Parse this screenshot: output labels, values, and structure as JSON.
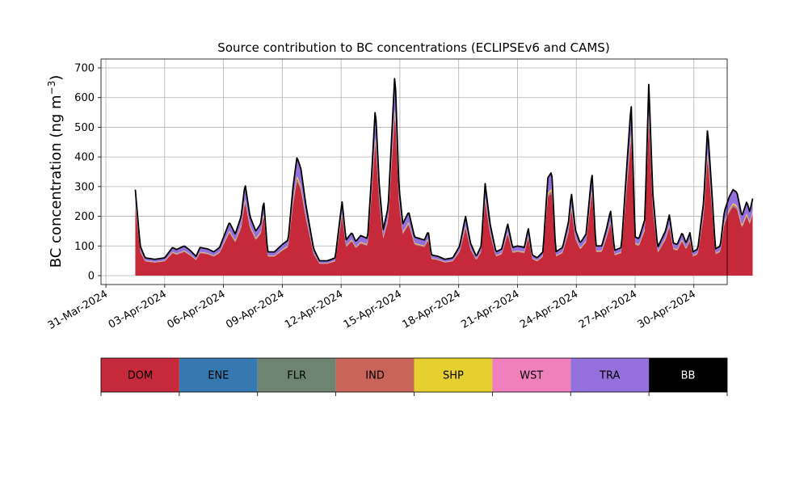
{
  "chart_data": {
    "type": "area",
    "stacked": true,
    "title": "Source contribution to BC concentrations (ECLIPSEv6 and CAMS)",
    "ylabel_main": "BC concentration (ng m",
    "ylabel_sup": "−3",
    "ylabel_close": ")",
    "ylim": [
      -30,
      730
    ],
    "yticks": [
      0,
      100,
      200,
      300,
      400,
      500,
      600,
      700
    ],
    "xlim_days": [
      -0.25,
      31.7
    ],
    "xtick_labels": [
      "31-Mar-2024",
      "03-Apr-2024",
      "06-Apr-2024",
      "09-Apr-2024",
      "12-Apr-2024",
      "15-Apr-2024",
      "18-Apr-2024",
      "21-Apr-2024",
      "24-Apr-2024",
      "27-Apr-2024",
      "30-Apr-2024"
    ],
    "xtick_days": [
      0,
      3,
      6,
      9,
      12,
      15,
      18,
      21,
      24,
      27,
      30
    ],
    "grid": true,
    "legend": "below",
    "series_order": [
      "DOM",
      "ENE",
      "FLR",
      "IND",
      "SHP",
      "WST",
      "TRA",
      "BB"
    ],
    "colors": {
      "DOM": "#c62a3a",
      "ENE": "#3679b1",
      "FLR": "#6f8470",
      "IND": "#c8645a",
      "SHP": "#e6d030",
      "WST": "#f07fbe",
      "TRA": "#9370db",
      "BB": "#000000"
    },
    "dom_fraction": 0.8,
    "minor_fractions": {
      "ENE": 0.005,
      "FLR": 0.005,
      "IND": 0.015,
      "SHP": 0.015,
      "WST": 0.005,
      "BB": 0.005
    },
    "total_keypoints": [
      [
        1.5,
        290
      ],
      [
        1.75,
        100
      ],
      [
        2.0,
        60
      ],
      [
        2.5,
        55
      ],
      [
        3.0,
        60
      ],
      [
        3.4,
        95
      ],
      [
        3.6,
        88
      ],
      [
        4.0,
        100
      ],
      [
        4.3,
        85
      ],
      [
        4.6,
        65
      ],
      [
        4.8,
        95
      ],
      [
        5.2,
        90
      ],
      [
        5.5,
        80
      ],
      [
        5.8,
        95
      ],
      [
        6.3,
        180
      ],
      [
        6.6,
        140
      ],
      [
        6.9,
        200
      ],
      [
        7.1,
        310
      ],
      [
        7.35,
        200
      ],
      [
        7.65,
        150
      ],
      [
        7.9,
        175
      ],
      [
        8.05,
        255
      ],
      [
        8.25,
        80
      ],
      [
        8.6,
        80
      ],
      [
        9.0,
        105
      ],
      [
        9.3,
        120
      ],
      [
        9.55,
        300
      ],
      [
        9.75,
        400
      ],
      [
        9.95,
        360
      ],
      [
        10.2,
        240
      ],
      [
        10.6,
        90
      ],
      [
        10.9,
        50
      ],
      [
        11.3,
        50
      ],
      [
        11.7,
        60
      ],
      [
        12.05,
        250
      ],
      [
        12.25,
        120
      ],
      [
        12.55,
        145
      ],
      [
        12.75,
        115
      ],
      [
        13.0,
        135
      ],
      [
        13.35,
        125
      ],
      [
        13.55,
        330
      ],
      [
        13.75,
        570
      ],
      [
        13.95,
        300
      ],
      [
        14.15,
        155
      ],
      [
        14.4,
        230
      ],
      [
        14.75,
        690
      ],
      [
        14.95,
        300
      ],
      [
        15.15,
        175
      ],
      [
        15.45,
        215
      ],
      [
        15.75,
        130
      ],
      [
        16.25,
        120
      ],
      [
        16.45,
        150
      ],
      [
        16.6,
        70
      ],
      [
        16.95,
        65
      ],
      [
        17.3,
        55
      ],
      [
        17.7,
        60
      ],
      [
        18.05,
        100
      ],
      [
        18.35,
        200
      ],
      [
        18.6,
        110
      ],
      [
        18.9,
        65
      ],
      [
        19.15,
        100
      ],
      [
        19.35,
        310
      ],
      [
        19.6,
        175
      ],
      [
        19.9,
        80
      ],
      [
        20.2,
        90
      ],
      [
        20.5,
        175
      ],
      [
        20.75,
        95
      ],
      [
        21.0,
        100
      ],
      [
        21.35,
        95
      ],
      [
        21.55,
        160
      ],
      [
        21.75,
        70
      ],
      [
        22.0,
        60
      ],
      [
        22.3,
        80
      ],
      [
        22.55,
        330
      ],
      [
        22.75,
        350
      ],
      [
        22.95,
        80
      ],
      [
        23.3,
        95
      ],
      [
        23.6,
        180
      ],
      [
        23.75,
        280
      ],
      [
        23.95,
        155
      ],
      [
        24.2,
        110
      ],
      [
        24.5,
        140
      ],
      [
        24.8,
        350
      ],
      [
        25.0,
        100
      ],
      [
        25.3,
        100
      ],
      [
        25.55,
        160
      ],
      [
        25.75,
        220
      ],
      [
        25.95,
        85
      ],
      [
        26.3,
        95
      ],
      [
        26.6,
        390
      ],
      [
        26.8,
        580
      ],
      [
        27.0,
        130
      ],
      [
        27.2,
        125
      ],
      [
        27.5,
        190
      ],
      [
        27.7,
        650
      ],
      [
        27.9,
        280
      ],
      [
        28.15,
        95
      ],
      [
        28.55,
        150
      ],
      [
        28.75,
        205
      ],
      [
        28.95,
        110
      ],
      [
        29.15,
        105
      ],
      [
        29.4,
        145
      ],
      [
        29.6,
        110
      ],
      [
        29.8,
        145
      ],
      [
        29.95,
        80
      ],
      [
        30.2,
        90
      ],
      [
        30.5,
        250
      ],
      [
        30.7,
        500
      ],
      [
        30.9,
        300
      ],
      [
        31.1,
        90
      ],
      [
        31.35,
        100
      ],
      [
        31.55,
        215
      ],
      [
        31.8,
        265
      ],
      [
        32.0,
        290
      ],
      [
        32.2,
        280
      ],
      [
        32.45,
        200
      ],
      [
        32.7,
        250
      ],
      [
        32.85,
        215
      ],
      [
        33.0,
        260
      ]
    ]
  },
  "legend_items": [
    {
      "label": "DOM",
      "text_color": "#000000"
    },
    {
      "label": "ENE",
      "text_color": "#000000"
    },
    {
      "label": "FLR",
      "text_color": "#000000"
    },
    {
      "label": "IND",
      "text_color": "#000000"
    },
    {
      "label": "SHP",
      "text_color": "#000000"
    },
    {
      "label": "WST",
      "text_color": "#000000"
    },
    {
      "label": "TRA",
      "text_color": "#000000"
    },
    {
      "label": "BB",
      "text_color": "#ffffff"
    }
  ]
}
